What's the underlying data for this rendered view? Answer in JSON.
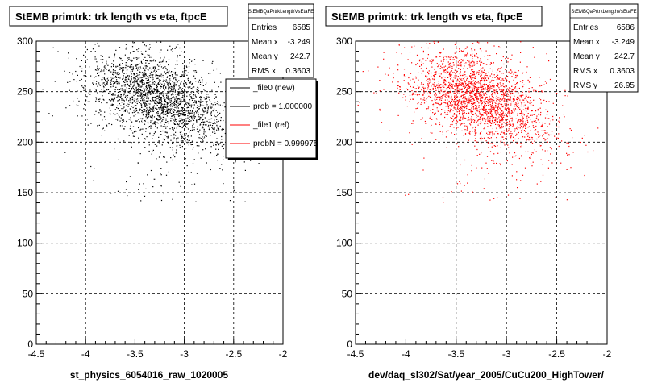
{
  "chart_data": [
    {
      "type": "scatter",
      "title": "StEMB primtrk: trk length vs eta, ftpcE",
      "xlabel": "st_physics_6054016_raw_1020005",
      "ylabel": "",
      "xlim": [
        -4.5,
        -2
      ],
      "ylim": [
        0,
        300
      ],
      "x_ticks": [
        "-4.5",
        "-4",
        "-3.5",
        "-3",
        "-2.5",
        "-2"
      ],
      "y_ticks": [
        "0",
        "50",
        "100",
        "150",
        "200",
        "250",
        "300"
      ],
      "grid": true,
      "point_color": "#000000",
      "stats": {
        "name": "StEMBQaPrtrkLengthVsEtaFE",
        "rows": [
          {
            "label": "Entries",
            "value": "6585"
          },
          {
            "label": "Mean x",
            "value": "-3.249"
          },
          {
            "label": "Mean y",
            "value": "242.7"
          },
          {
            "label": "RMS x",
            "value": "0.3603"
          }
        ]
      },
      "legend": {
        "placement": "top-right",
        "entries": [
          {
            "label": "_file0 (new)",
            "color": "#000000"
          },
          {
            "label": "prob = 1.000000",
            "color": "#000000"
          },
          {
            "label": "_file1 (ref)",
            "color": "#ff0000"
          },
          {
            "label": "probN = 0.999975",
            "color": "#ff0000"
          }
        ]
      },
      "distribution": {
        "entries": 6585,
        "mean_x": -3.249,
        "mean_y": 242.7,
        "rms_x": 0.3603,
        "rms_y": 26.95
      }
    },
    {
      "type": "scatter",
      "title": "StEMB primtrk: trk length vs eta, ftpcE",
      "xlabel": "dev/daq_sl302/Sat/year_2005/CuCu200_HighTower/",
      "ylabel": "",
      "xlim": [
        -4.5,
        -2
      ],
      "ylim": [
        0,
        300
      ],
      "x_ticks": [
        "-4.5",
        "-4",
        "-3.5",
        "-3",
        "-2.5",
        "-2"
      ],
      "y_ticks": [
        "0",
        "50",
        "100",
        "150",
        "200",
        "250",
        "300"
      ],
      "grid": true,
      "point_color": "#ff0000",
      "stats": {
        "name": "StEMBQaPrtrkLengthVsEtaFE",
        "rows": [
          {
            "label": "Entries",
            "value": "6586"
          },
          {
            "label": "Mean x",
            "value": "-3.249"
          },
          {
            "label": "Mean y",
            "value": "242.7"
          },
          {
            "label": "RMS x",
            "value": "0.3603"
          },
          {
            "label": "RMS y",
            "value": "26.95"
          }
        ]
      },
      "distribution": {
        "entries": 6586,
        "mean_x": -3.249,
        "mean_y": 242.7,
        "rms_x": 0.3603,
        "rms_y": 26.95
      }
    }
  ]
}
